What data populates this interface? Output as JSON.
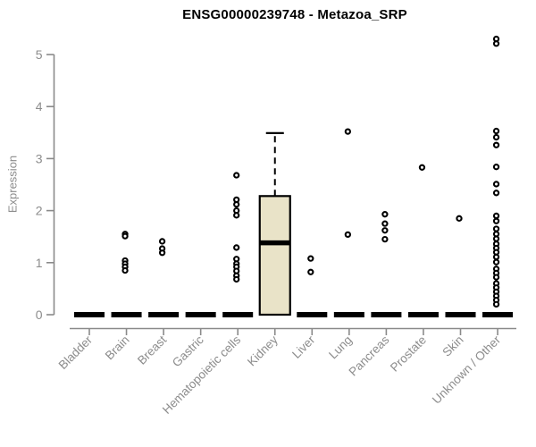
{
  "chart_data": {
    "type": "boxplot",
    "title": "ENSG00000239748 - Metazoa_SRP",
    "ylabel": "Expression",
    "xlabel": "",
    "ylim": [
      0,
      5
    ],
    "yticks": [
      0,
      1,
      2,
      3,
      4,
      5
    ],
    "grid": false,
    "legend": false,
    "categories": [
      "Bladder",
      "Brain",
      "Breast",
      "Gastric",
      "Hematopoietic cells",
      "Kidney",
      "Liver",
      "Lung",
      "Pancreas",
      "Prostate",
      "Skin",
      "Unknown / Other"
    ],
    "boxes": [
      {
        "category": "Bladder",
        "q1": 0,
        "median": 0,
        "q3": 0,
        "whisker_low": 0,
        "whisker_high": 0,
        "outliers": []
      },
      {
        "category": "Brain",
        "q1": 0,
        "median": 0,
        "q3": 0,
        "whisker_low": 0,
        "whisker_high": 0,
        "outliers": [
          1.55,
          1.51,
          1.04,
          0.98,
          0.92,
          0.85
        ]
      },
      {
        "category": "Breast",
        "q1": 0,
        "median": 0,
        "q3": 0,
        "whisker_low": 0,
        "whisker_high": 0,
        "outliers": [
          1.41,
          1.27,
          1.19
        ]
      },
      {
        "category": "Gastric",
        "q1": 0,
        "median": 0,
        "q3": 0,
        "whisker_low": 0,
        "whisker_high": 0,
        "outliers": []
      },
      {
        "category": "Hematopoietic cells",
        "q1": 0,
        "median": 0,
        "q3": 0,
        "whisker_low": 0,
        "whisker_high": 0,
        "outliers": [
          2.68,
          2.21,
          2.12,
          2.0,
          1.91,
          1.29,
          1.07,
          0.98,
          0.92,
          0.84,
          0.75,
          0.68
        ]
      },
      {
        "category": "Kidney",
        "q1": 0,
        "median": 1.38,
        "q3": 2.28,
        "whisker_low": 0,
        "whisker_high": 3.49,
        "outliers": []
      },
      {
        "category": "Liver",
        "q1": 0,
        "median": 0,
        "q3": 0,
        "whisker_low": 0,
        "whisker_high": 0,
        "outliers": [
          1.08,
          0.82
        ]
      },
      {
        "category": "Lung",
        "q1": 0,
        "median": 0,
        "q3": 0,
        "whisker_low": 0,
        "whisker_high": 0,
        "outliers": [
          3.52,
          1.54
        ]
      },
      {
        "category": "Pancreas",
        "q1": 0,
        "median": 0,
        "q3": 0,
        "whisker_low": 0,
        "whisker_high": 0,
        "outliers": [
          1.93,
          1.75,
          1.62,
          1.45
        ]
      },
      {
        "category": "Prostate",
        "q1": 0,
        "median": 0,
        "q3": 0,
        "whisker_low": 0,
        "whisker_high": 0,
        "outliers": [
          2.83
        ]
      },
      {
        "category": "Skin",
        "q1": 0,
        "median": 0,
        "q3": 0,
        "whisker_low": 0,
        "whisker_high": 0,
        "outliers": [
          1.85
        ]
      },
      {
        "category": "Unknown / Other",
        "q1": 0,
        "median": 0,
        "q3": 0,
        "whisker_low": 0,
        "whisker_high": 0,
        "outliers": [
          5.3,
          5.21,
          3.53,
          3.41,
          3.26,
          2.84,
          2.51,
          2.34,
          1.9,
          1.8,
          1.65,
          1.55,
          1.46,
          1.36,
          1.28,
          1.2,
          1.11,
          1.01,
          0.88,
          0.8,
          0.72,
          0.6,
          0.52,
          0.44,
          0.36,
          0.28,
          0.2
        ]
      }
    ],
    "colors": {
      "box_fill": "#e9e3c8",
      "box_border": "#000000",
      "median": "#000000",
      "point": "#000000",
      "axis": "#8a8a8a",
      "tick_label": "#8c8c8c",
      "title": "#000000",
      "background": "#ffffff"
    }
  }
}
